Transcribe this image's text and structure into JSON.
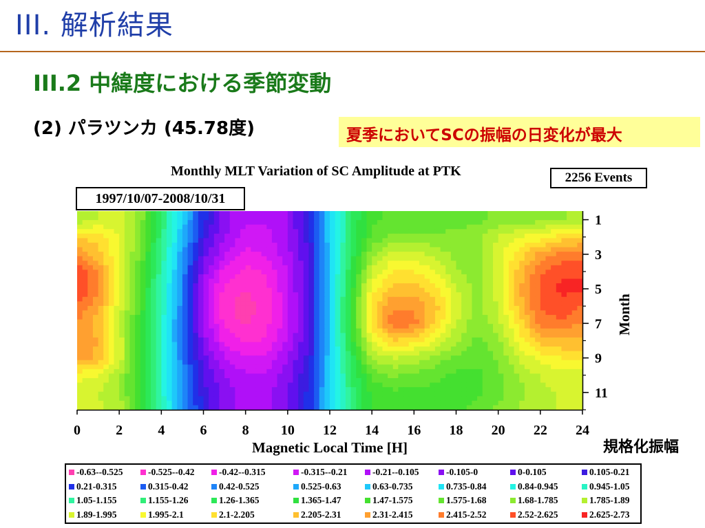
{
  "slide": {
    "title": "III. 解析結果",
    "subtitle": "III.2 中緯度における季節変動",
    "station_label": "(2) パラツンカ (45.78度)",
    "highlight_text": "夏季においてSCの振幅の日変化が最大",
    "norm_label": "規格化振幅"
  },
  "chart_data": {
    "type": "heatmap",
    "title": "Monthly MLT Variation of SC Amplitude at PTK",
    "events_label": "2256 Events",
    "period_label": "1997/10/07-2008/10/31",
    "xlabel": "Magnetic Local Time [H]",
    "ylabel": "Month",
    "xlim": [
      0,
      24
    ],
    "ylim": [
      12,
      0.5
    ],
    "x_ticks": [
      "0",
      "2",
      "4",
      "6",
      "8",
      "10",
      "12",
      "14",
      "16",
      "18",
      "20",
      "22",
      "24"
    ],
    "y_ticks": [
      "1",
      "3",
      "5",
      "7",
      "9",
      "11"
    ],
    "x": [
      0,
      1,
      2,
      3,
      4,
      5,
      6,
      7,
      8,
      9,
      10,
      11,
      12,
      13,
      14,
      15,
      16,
      17,
      18,
      19,
      20,
      21,
      22,
      23,
      24
    ],
    "y": [
      1,
      2,
      3,
      4,
      5,
      6,
      7,
      8,
      9,
      10,
      11,
      12
    ],
    "z": [
      [
        1.8,
        1.9,
        1.95,
        1.75,
        1.25,
        0.7,
        0.25,
        -0.05,
        -0.2,
        -0.2,
        -0.1,
        0.2,
        0.7,
        1.25,
        1.55,
        1.6,
        1.6,
        1.62,
        1.65,
        1.65,
        1.7,
        1.72,
        1.75,
        1.78,
        1.8
      ],
      [
        2.2,
        2.15,
        2.0,
        1.7,
        1.2,
        0.65,
        0.15,
        -0.1,
        -0.25,
        -0.25,
        -0.1,
        0.15,
        0.7,
        1.25,
        1.6,
        1.7,
        1.7,
        1.7,
        1.7,
        1.75,
        1.9,
        2.0,
        2.05,
        2.15,
        2.2
      ],
      [
        2.4,
        2.25,
        2.0,
        1.65,
        1.15,
        0.55,
        0.05,
        -0.2,
        -0.35,
        -0.3,
        -0.15,
        0.1,
        0.7,
        1.3,
        1.75,
        1.95,
        1.95,
        1.85,
        1.75,
        1.75,
        1.95,
        2.15,
        2.35,
        2.45,
        2.45
      ],
      [
        2.6,
        2.4,
        2.0,
        1.6,
        1.1,
        0.5,
        -0.05,
        -0.35,
        -0.45,
        -0.4,
        -0.2,
        0.1,
        0.7,
        1.35,
        1.9,
        2.1,
        2.1,
        2.0,
        1.8,
        1.7,
        1.95,
        2.25,
        2.5,
        2.6,
        2.6
      ],
      [
        2.65,
        2.45,
        2.0,
        1.55,
        1.05,
        0.45,
        -0.15,
        -0.45,
        -0.52,
        -0.45,
        -0.22,
        0.1,
        0.7,
        1.4,
        2.05,
        2.25,
        2.25,
        2.15,
        1.9,
        1.75,
        1.95,
        2.3,
        2.55,
        2.65,
        2.65
      ],
      [
        2.5,
        2.35,
        1.95,
        1.55,
        1.05,
        0.45,
        -0.15,
        -0.5,
        -0.58,
        -0.48,
        -0.25,
        0.1,
        0.7,
        1.45,
        2.15,
        2.4,
        2.4,
        2.25,
        1.95,
        1.75,
        1.9,
        2.25,
        2.55,
        2.6,
        2.5
      ],
      [
        2.4,
        2.25,
        1.9,
        1.5,
        1.0,
        0.4,
        -0.1,
        -0.45,
        -0.55,
        -0.45,
        -0.25,
        0.1,
        0.7,
        1.45,
        2.15,
        2.5,
        2.45,
        2.2,
        1.9,
        1.7,
        1.85,
        2.15,
        2.45,
        2.5,
        2.4
      ],
      [
        2.4,
        2.3,
        1.95,
        1.5,
        1.0,
        0.4,
        -0.05,
        -0.35,
        -0.45,
        -0.4,
        -0.2,
        0.1,
        0.7,
        1.4,
        2.0,
        2.2,
        2.15,
        2.0,
        1.8,
        1.65,
        1.75,
        2.05,
        2.25,
        2.3,
        2.3
      ],
      [
        2.35,
        2.3,
        1.95,
        1.5,
        1.0,
        0.45,
        0.05,
        -0.2,
        -0.3,
        -0.3,
        -0.1,
        0.15,
        0.7,
        1.3,
        1.8,
        1.9,
        1.85,
        1.75,
        1.65,
        1.6,
        1.7,
        1.9,
        2.05,
        2.1,
        2.1
      ],
      [
        2.05,
        2.0,
        1.8,
        1.45,
        1.0,
        0.5,
        0.1,
        -0.1,
        -0.2,
        -0.2,
        -0.05,
        0.2,
        0.7,
        1.25,
        1.6,
        1.7,
        1.65,
        1.6,
        1.55,
        1.55,
        1.65,
        1.8,
        1.9,
        1.95,
        1.95
      ],
      [
        1.9,
        1.9,
        1.8,
        1.45,
        1.0,
        0.5,
        0.15,
        -0.05,
        -0.15,
        -0.15,
        0.0,
        0.25,
        0.7,
        1.2,
        1.5,
        1.55,
        1.55,
        1.55,
        1.55,
        1.55,
        1.65,
        1.75,
        1.85,
        1.9,
        1.9
      ],
      [
        1.9,
        1.9,
        1.85,
        1.5,
        1.05,
        0.55,
        0.2,
        -0.05,
        -0.15,
        -0.15,
        0.0,
        0.25,
        0.7,
        1.2,
        1.5,
        1.55,
        1.55,
        1.55,
        1.55,
        1.6,
        1.7,
        1.8,
        1.85,
        1.9,
        1.9
      ]
    ],
    "legend": [
      {
        "label": "-0.63--0.525",
        "color": "#ff3fb0"
      },
      {
        "label": "-0.525--0.42",
        "color": "#ff30d0"
      },
      {
        "label": "-0.42--0.315",
        "color": "#f020e8"
      },
      {
        "label": "-0.315--0.21",
        "color": "#d018f5"
      },
      {
        "label": "-0.21--0.105",
        "color": "#b010f8"
      },
      {
        "label": "-0.105-0",
        "color": "#8a10f2"
      },
      {
        "label": "0-0.105",
        "color": "#6010ee"
      },
      {
        "label": "0.105-0.21",
        "color": "#3c1ce0"
      },
      {
        "label": "0.21-0.315",
        "color": "#2030e8"
      },
      {
        "label": "0.315-0.42",
        "color": "#1c5cf2"
      },
      {
        "label": "0.42-0.525",
        "color": "#1e84f8"
      },
      {
        "label": "0.525-0.63",
        "color": "#1ea8fa"
      },
      {
        "label": "0.63-0.735",
        "color": "#1ec8fa"
      },
      {
        "label": "0.735-0.84",
        "color": "#20e4f5"
      },
      {
        "label": "0.84-0.945",
        "color": "#24f4e4"
      },
      {
        "label": "0.945-1.05",
        "color": "#28f4c4"
      },
      {
        "label": "1.05-1.155",
        "color": "#30f4a0"
      },
      {
        "label": "1.155-1.26",
        "color": "#30ee78"
      },
      {
        "label": "1.26-1.365",
        "color": "#2ce858"
      },
      {
        "label": "1.365-1.47",
        "color": "#30e040"
      },
      {
        "label": "1.47-1.575",
        "color": "#44e030"
      },
      {
        "label": "1.575-1.68",
        "color": "#64e430"
      },
      {
        "label": "1.68-1.785",
        "color": "#8cea30"
      },
      {
        "label": "1.785-1.89",
        "color": "#b4f030"
      },
      {
        "label": "1.89-1.995",
        "color": "#d8f430"
      },
      {
        "label": "1.995-2.1",
        "color": "#f8f830"
      },
      {
        "label": "2.1-2.205",
        "color": "#ffe030"
      },
      {
        "label": "2.205-2.31",
        "color": "#ffc030"
      },
      {
        "label": "2.31-2.415",
        "color": "#ffa030"
      },
      {
        "label": "2.415-2.52",
        "color": "#ff7c2c"
      },
      {
        "label": "2.52-2.625",
        "color": "#ff5028"
      },
      {
        "label": "2.625-2.73",
        "color": "#f82424"
      }
    ],
    "legend_columns": 8,
    "z_min": -0.63,
    "z_step": 0.105
  }
}
